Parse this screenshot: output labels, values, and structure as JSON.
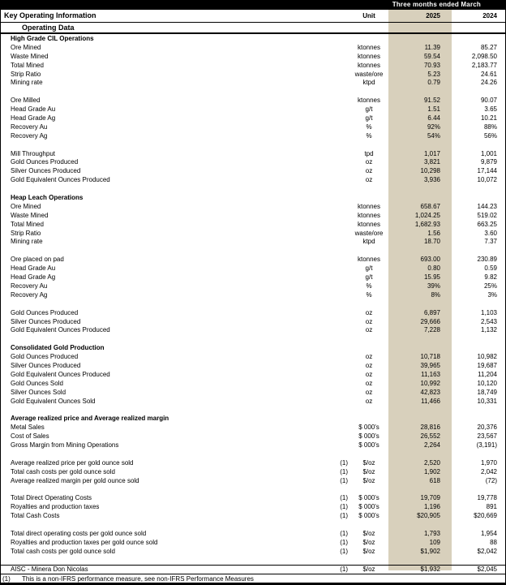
{
  "header": {
    "period_label": "Three months ended March",
    "title": "Key Operating Information",
    "subtitle": "Operating Data",
    "unit_label": "Unit",
    "year_cols": [
      "2025",
      "2024"
    ]
  },
  "colors": {
    "highlight_2025_column": "#d8d0bc",
    "bar": "#000000"
  },
  "blocks": [
    {
      "title": "High Grade CIL Operations",
      "rows": [
        {
          "label": "Ore Mined",
          "unit": "ktonnes",
          "y2025": "11.39",
          "y2024": "85.27"
        },
        {
          "label": "Waste Mined",
          "unit": "ktonnes",
          "y2025": "59.54",
          "y2024": "2,098.50"
        },
        {
          "label": "Total Mined",
          "unit": "ktonnes",
          "y2025": "70.93",
          "y2024": "2,183.77"
        },
        {
          "label": "Strip Ratio",
          "unit": "waste/ore",
          "y2025": "5.23",
          "y2024": "24.61"
        },
        {
          "label": "Mining rate",
          "unit": "ktpd",
          "y2025": "0.79",
          "y2024": "24.26"
        }
      ]
    },
    {
      "rows": [
        {
          "label": "Ore Milled",
          "unit": "ktonnes",
          "y2025": "91.52",
          "y2024": "90.07"
        },
        {
          "label": "Head Grade Au",
          "unit": "g/t",
          "y2025": "1.51",
          "y2024": "3.65"
        },
        {
          "label": "Head Grade Ag",
          "unit": "g/t",
          "y2025": "6.44",
          "y2024": "10.21"
        },
        {
          "label": "Recovery Au",
          "unit": "%",
          "y2025": "92%",
          "y2024": "88%"
        },
        {
          "label": "Recovery Ag",
          "unit": "%",
          "y2025": "54%",
          "y2024": "56%"
        }
      ]
    },
    {
      "rows": [
        {
          "label": "Mill Throughput",
          "unit": "tpd",
          "y2025": "1,017",
          "y2024": "1,001"
        },
        {
          "label": "Gold Ounces Produced",
          "unit": "oz",
          "y2025": "3,821",
          "y2024": "9,879"
        },
        {
          "label": "Silver Ounces Produced",
          "unit": "oz",
          "y2025": "10,298",
          "y2024": "17,144"
        },
        {
          "label": "Gold Equivalent Ounces Produced",
          "unit": "oz",
          "y2025": "3,936",
          "y2024": "10,072"
        }
      ]
    },
    {
      "title": "Heap Leach Operations",
      "rows": [
        {
          "label": "Ore Mined",
          "unit": "ktonnes",
          "y2025": "658.67",
          "y2024": "144.23"
        },
        {
          "label": "Waste Mined",
          "unit": "ktonnes",
          "y2025": "1,024.25",
          "y2024": "519.02"
        },
        {
          "label": "Total Mined",
          "unit": "ktonnes",
          "y2025": "1,682.93",
          "y2024": "663.25"
        },
        {
          "label": "Strip Ratio",
          "unit": "waste/ore",
          "y2025": "1.56",
          "y2024": "3.60"
        },
        {
          "label": "Mining rate",
          "unit": "ktpd",
          "y2025": "18.70",
          "y2024": "7.37"
        }
      ]
    },
    {
      "rows": [
        {
          "label": "Ore placed on pad",
          "unit": "ktonnes",
          "y2025": "693.00",
          "y2024": "230.89"
        },
        {
          "label": "Head Grade Au",
          "unit": "g/t",
          "y2025": "0.80",
          "y2024": "0.59"
        },
        {
          "label": "Head Grade Ag",
          "unit": "g/t",
          "y2025": "15.95",
          "y2024": "9.82"
        },
        {
          "label": "Recovery Au",
          "unit": "%",
          "y2025": "39%",
          "y2024": "25%"
        },
        {
          "label": "Recovery Ag",
          "unit": "%",
          "y2025": "8%",
          "y2024": "3%"
        }
      ]
    },
    {
      "rows": [
        {
          "label": "Gold Ounces Produced",
          "unit": "oz",
          "y2025": "6,897",
          "y2024": "1,103"
        },
        {
          "label": "Silver Ounces Produced",
          "unit": "oz",
          "y2025": "29,666",
          "y2024": "2,543"
        },
        {
          "label": "Gold Equivalent Ounces Produced",
          "unit": "oz",
          "y2025": "7,228",
          "y2024": "1,132"
        }
      ]
    },
    {
      "title": "Consolidated Gold Production",
      "rows": [
        {
          "label": "Gold Ounces Produced",
          "unit": "oz",
          "y2025": "10,718",
          "y2024": "10,982"
        },
        {
          "label": "Silver Ounces Produced",
          "unit": "oz",
          "y2025": "39,965",
          "y2024": "19,687"
        },
        {
          "label": "Gold Equivalent Ounces Produced",
          "unit": "oz",
          "y2025": "11,163",
          "y2024": "11,204"
        },
        {
          "label": "Gold Ounces Sold",
          "unit": "oz",
          "y2025": "10,992",
          "y2024": "10,120"
        },
        {
          "label": "Silver Ounces Sold",
          "unit": "oz",
          "y2025": "42,823",
          "y2024": "18,749"
        },
        {
          "label": "Gold Equivalent Ounces Sold",
          "unit": "oz",
          "y2025": "11,466",
          "y2024": "10,331"
        }
      ]
    },
    {
      "title": "Average realized price and Average realized margin",
      "rows": [
        {
          "label": "Metal Sales",
          "unit": "$ 000's",
          "y2025": "28,816",
          "y2024": "20,376"
        },
        {
          "label": "Cost of Sales",
          "unit": "$ 000's",
          "y2025": "26,552",
          "y2024": "23,567"
        },
        {
          "label": "Gross Margin from Mining Operations",
          "unit": "$ 000's",
          "y2025": "2,264",
          "y2024": "(3,191)"
        }
      ]
    },
    {
      "rows": [
        {
          "label": "Average realized price per gold ounce sold",
          "note": "(1)",
          "unit": "$/oz",
          "y2025": "2,520",
          "y2024": "1,970"
        },
        {
          "label": "Total cash costs per gold ounce sold",
          "note": "(1)",
          "unit": "$/oz",
          "y2025": "1,902",
          "y2024": "2,042"
        },
        {
          "label": "Average realized margin per gold ounce sold",
          "note": "(1)",
          "unit": "$/oz",
          "y2025": "618",
          "y2024": "(72)"
        }
      ]
    },
    {
      "rows": [
        {
          "label": "Total Direct Operating Costs",
          "note": "(1)",
          "unit": "$ 000's",
          "y2025": "19,709",
          "y2024": "19,778"
        },
        {
          "label": "Royalties and production taxes",
          "note": "(1)",
          "unit": "$ 000's",
          "y2025": "1,196",
          "y2024": "891"
        },
        {
          "label": "Total Cash Costs",
          "note": "(1)",
          "unit": "$ 000's",
          "y2025": "$20,905",
          "y2024": "$20,669"
        }
      ]
    },
    {
      "rows": [
        {
          "label": "Total direct operating costs per gold ounce sold",
          "note": "(1)",
          "unit": "$/oz",
          "y2025": "1,793",
          "y2024": "1,954"
        },
        {
          "label": "Royalties and production taxes per gold ounce sold",
          "note": "(1)",
          "unit": "$/oz",
          "y2025": "109",
          "y2024": "88"
        },
        {
          "label": "Total cash costs per gold ounce sold",
          "note": "(1)",
          "unit": "$/oz",
          "y2025": "$1,902",
          "y2024": "$2,042"
        }
      ]
    },
    {
      "rows": [
        {
          "label": "AISC - Minera Don Nicolas",
          "note": "(1)",
          "unit": "$/oz",
          "y2025": "$1,932",
          "y2024": "$2,045",
          "rule_top": true
        }
      ]
    }
  ],
  "footnote": {
    "marker": "(1)",
    "text": "This is a non-IFRS performance measure, see non-IFRS Performance Measures"
  }
}
